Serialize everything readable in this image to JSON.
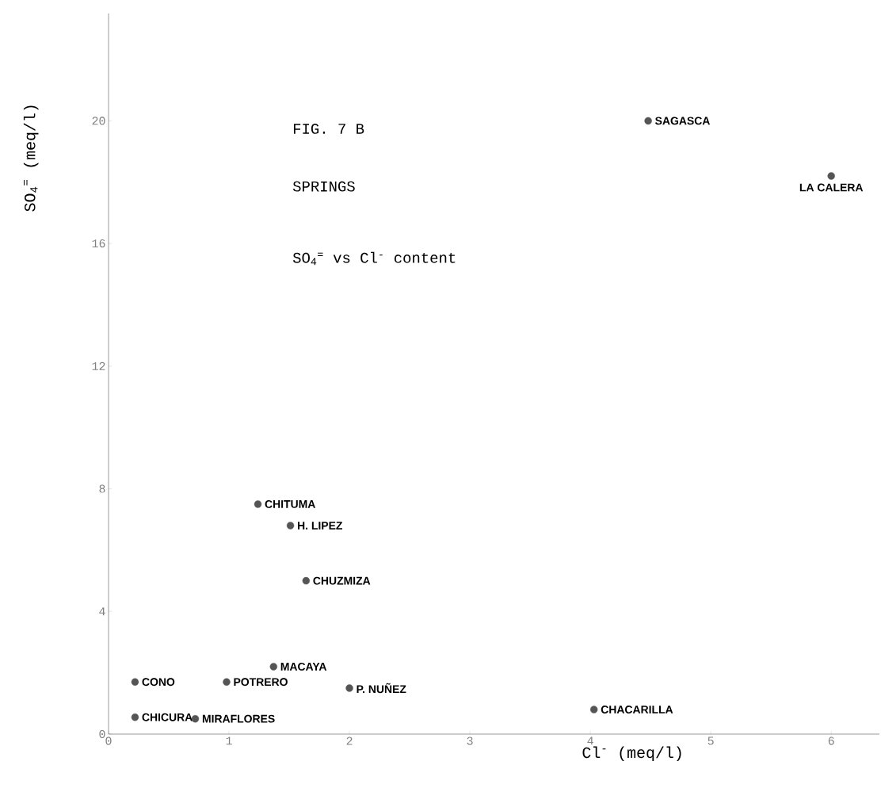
{
  "chart_data": {
    "type": "scatter",
    "title": "FIG. 7 B",
    "subtitle": "SPRINGS",
    "annotations": [
      "SO$_{4}$$^{=}$  vs  Cl$^{-}$ content",
      {
        "text": "CONO",
        "x": 0.22,
        "y": 1.7
      },
      {
        "text": "CHICURA",
        "x": 0.22,
        "y": 0.55
      },
      {
        "text": "MIRAFLORES",
        "x": 0.72,
        "y": 0.5
      },
      {
        "text": "POTRERO",
        "x": 0.98,
        "y": 1.7
      },
      {
        "text": "MACAYA",
        "x": 1.37,
        "y": 2.2
      },
      {
        "text": "P. NUÑEZ",
        "x": 2.0,
        "y": 1.5
      },
      {
        "text": "CHUZMIZA",
        "x": 1.64,
        "y": 5.0
      },
      {
        "text": "H. LIPEZ",
        "x": 1.51,
        "y": 6.8
      },
      {
        "text": "CHITUMA",
        "x": 1.24,
        "y": 7.5
      },
      {
        "text": "SAGASCA",
        "x": 4.48,
        "y": 20.0
      },
      {
        "text": "LA CALERA",
        "x": 6.0,
        "y": 18.2
      },
      {
        "text": "CHACARILLA",
        "x": 4.03,
        "y": 0.8
      }
    ],
    "xlabel": "Cl$^{-}$ (meq/l)",
    "ylabel": "SO$_{4}$$^{=}$ (meq/l)",
    "x": [
      0.22,
      0.22,
      0.72,
      0.98,
      1.37,
      2.0,
      1.64,
      1.51,
      1.24,
      4.48,
      6.0,
      4.03
    ],
    "values": [
      1.7,
      0.55,
      0.5,
      1.7,
      2.2,
      1.5,
      5.0,
      6.8,
      7.5,
      20.0,
      18.2,
      0.8
    ],
    "color": "#555555",
    "xlim": [
      0,
      6.4
    ],
    "ylim": [
      0,
      23.5
    ],
    "xticks": [
      0,
      1,
      2,
      3,
      4,
      5,
      6
    ],
    "yticks": [
      0,
      4,
      8,
      12,
      16,
      20
    ]
  }
}
